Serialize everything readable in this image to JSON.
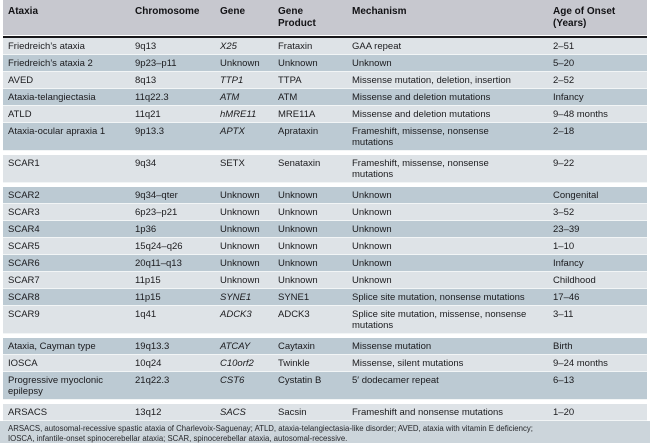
{
  "colors": {
    "accent_purple": "#5d4a75",
    "row_light": "#dee3e7",
    "row_dark": "#bccad3",
    "header_bg": "#c7c8cf",
    "footnote_bg": "#ccd5db"
  },
  "table": {
    "columns": [
      "Ataxia",
      "Chromosome",
      "Gene",
      "Gene\nProduct",
      "Mechanism",
      "Age of Onset\n(Years)"
    ],
    "rows": [
      {
        "ataxia": "Friedreich’s ataxia",
        "chromosome": "9q13",
        "gene": "X25",
        "gene_italic": true,
        "gene_product": "Frataxin",
        "mechanism": "GAA repeat",
        "age": "2–51"
      },
      {
        "ataxia": "Friedreich’s ataxia 2",
        "chromosome": "9p23–p11",
        "gene": "Unknown",
        "gene_italic": false,
        "gene_product": "Unknown",
        "mechanism": "Unknown",
        "age": "5–20"
      },
      {
        "ataxia": "AVED",
        "chromosome": "8q13",
        "gene": "TTP1",
        "gene_italic": true,
        "gene_product": "TTPA",
        "mechanism": "Missense mutation, deletion, insertion",
        "age": "2–52"
      },
      {
        "ataxia": "Ataxia-telangiectasia",
        "chromosome": "11q22.3",
        "gene": "ATM",
        "gene_italic": true,
        "gene_product": "ATM",
        "mechanism": "Missense and deletion mutations",
        "age": "Infancy"
      },
      {
        "ataxia": "ATLD",
        "chromosome": "11q21",
        "gene": "hMRE11",
        "gene_italic": true,
        "gene_product": "MRE11A",
        "mechanism": "Missense and deletion mutations",
        "age": "9–48 months"
      },
      {
        "ataxia": "Ataxia-ocular apraxia 1",
        "chromosome": "9p13.3",
        "gene": "APTX",
        "gene_italic": true,
        "gene_product": "Aprataxin",
        "mechanism": "Frameshift, missense, nonsense\nmutations",
        "age": "2–18"
      },
      {
        "ataxia": "SCAR1",
        "chromosome": "9q34",
        "gene": "SETX",
        "gene_italic": false,
        "gene_product": "Senataxin",
        "mechanism": "Frameshift, missense, nonsense\nmutations",
        "age": "9–22"
      },
      {
        "ataxia": "SCAR2",
        "chromosome": "9q34–qter",
        "gene": "Unknown",
        "gene_italic": false,
        "gene_product": "Unknown",
        "mechanism": "Unknown",
        "age": "Congenital"
      },
      {
        "ataxia": "SCAR3",
        "chromosome": "6p23–p21",
        "gene": "Unknown",
        "gene_italic": false,
        "gene_product": "Unknown",
        "mechanism": "Unknown",
        "age": "3–52"
      },
      {
        "ataxia": "SCAR4",
        "chromosome": "1p36",
        "gene": "Unknown",
        "gene_italic": false,
        "gene_product": "Unknown",
        "mechanism": "Unknown",
        "age": "23–39"
      },
      {
        "ataxia": "SCAR5",
        "chromosome": "15q24–q26",
        "gene": "Unknown",
        "gene_italic": false,
        "gene_product": "Unknown",
        "mechanism": "Unknown",
        "age": "1–10"
      },
      {
        "ataxia": "SCAR6",
        "chromosome": "20q11–q13",
        "gene": "Unknown",
        "gene_italic": false,
        "gene_product": "Unknown",
        "mechanism": "Unknown",
        "age": "Infancy"
      },
      {
        "ataxia": "SCAR7",
        "chromosome": "11p15",
        "gene": "Unknown",
        "gene_italic": false,
        "gene_product": "Unknown",
        "mechanism": "Unknown",
        "age": "Childhood"
      },
      {
        "ataxia": "SCAR8",
        "chromosome": "11p15",
        "gene": "SYNE1",
        "gene_italic": true,
        "gene_product": "SYNE1",
        "mechanism": "Splice site mutation, nonsense mutations",
        "age": "17–46"
      },
      {
        "ataxia": "SCAR9",
        "chromosome": "1q41",
        "gene": "ADCK3",
        "gene_italic": true,
        "gene_product": "ADCK3",
        "mechanism": "Splice site mutation, missense, nonsense\nmutations",
        "age": "3–11"
      },
      {
        "ataxia": "Ataxia, Cayman type",
        "chromosome": "19q13.3",
        "gene": "ATCAY",
        "gene_italic": true,
        "gene_product": "Caytaxin",
        "mechanism": "Missense mutation",
        "age": "Birth"
      },
      {
        "ataxia": "IOSCA",
        "chromosome": "10q24",
        "gene": "C10orf2",
        "gene_italic": true,
        "gene_product": "Twinkle",
        "mechanism": "Missense, silent mutations",
        "age": "9–24 months"
      },
      {
        "ataxia": "Progressive myoclonic\nepilepsy",
        "chromosome": "21q22.3",
        "gene": "CST6",
        "gene_italic": true,
        "gene_product": "Cystatin B",
        "mechanism": "5′ dodecamer repeat",
        "age": "6–13"
      },
      {
        "ataxia": "ARSACS",
        "chromosome": "13q12",
        "gene": "SACS",
        "gene_italic": true,
        "gene_product": "Sacsin",
        "mechanism": "Frameshift and nonsense mutations",
        "age": "1–20"
      }
    ],
    "footnote": "ARSACS, autosomal-recessive spastic ataxia of Charlevoix-Saguenay; ATLD, ataxia-telangiectasia-like disorder; AVED, ataxia with vitamin E deficiency;\nIOSCA, infantile-onset spinocerebellar ataxia; SCAR, spinocerebellar ataxia, autosomal-recessive."
  }
}
